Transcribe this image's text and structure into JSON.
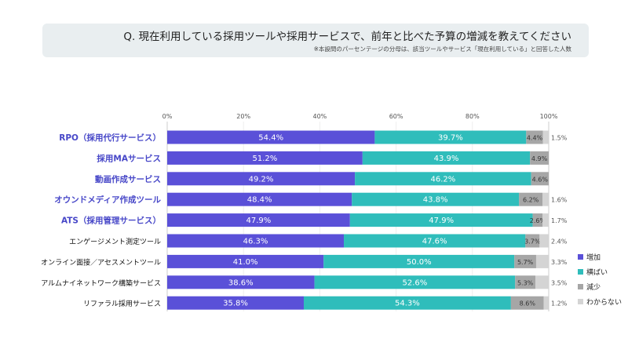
{
  "header": {
    "title": "Q. 現在利用している採用ツールや採用サービスで、前年と比べた予算の増減を教えてください",
    "note": "※本設問のパーセンテージの分母は、該当ツールやサービス「現在利用している」と回答した人数"
  },
  "chart_data": {
    "type": "bar",
    "orientation": "horizontal",
    "stacked": true,
    "xlim": [
      0,
      100
    ],
    "xticks": [
      "0%",
      "20%",
      "40%",
      "60%",
      "80%",
      "100%"
    ],
    "legend_position": "right",
    "categories": [
      "RPO（採用代行サービス）",
      "採用MAサービス",
      "動画作成サービス",
      "オウンドメディア作成ツール",
      "ATS（採用管理サービス）",
      "エンゲージメント測定ツール",
      "オンライン面接／アセスメントツール",
      "アルムナイネットワーク構築サービス",
      "リファラル採用サービス"
    ],
    "highlighted_categories": [
      0,
      1,
      2,
      3,
      4
    ],
    "highlight_color": "#4747c8",
    "series": [
      {
        "name": "増加",
        "color": "#5a50d8",
        "values": [
          54.4,
          51.2,
          49.2,
          48.4,
          47.9,
          46.3,
          41.0,
          38.6,
          35.8
        ]
      },
      {
        "name": "横ばい",
        "color": "#2fbdbb",
        "values": [
          39.7,
          43.9,
          46.2,
          43.8,
          47.9,
          47.6,
          50.0,
          52.6,
          54.3
        ]
      },
      {
        "name": "減少",
        "color": "#a6a6a6",
        "values": [
          4.4,
          4.9,
          4.6,
          6.2,
          2.6,
          3.7,
          5.7,
          5.3,
          8.6
        ]
      },
      {
        "name": "わからない",
        "color": "#d4d4d4",
        "values": [
          1.5,
          null,
          null,
          1.6,
          1.7,
          2.4,
          3.3,
          3.5,
          1.2
        ]
      }
    ]
  }
}
